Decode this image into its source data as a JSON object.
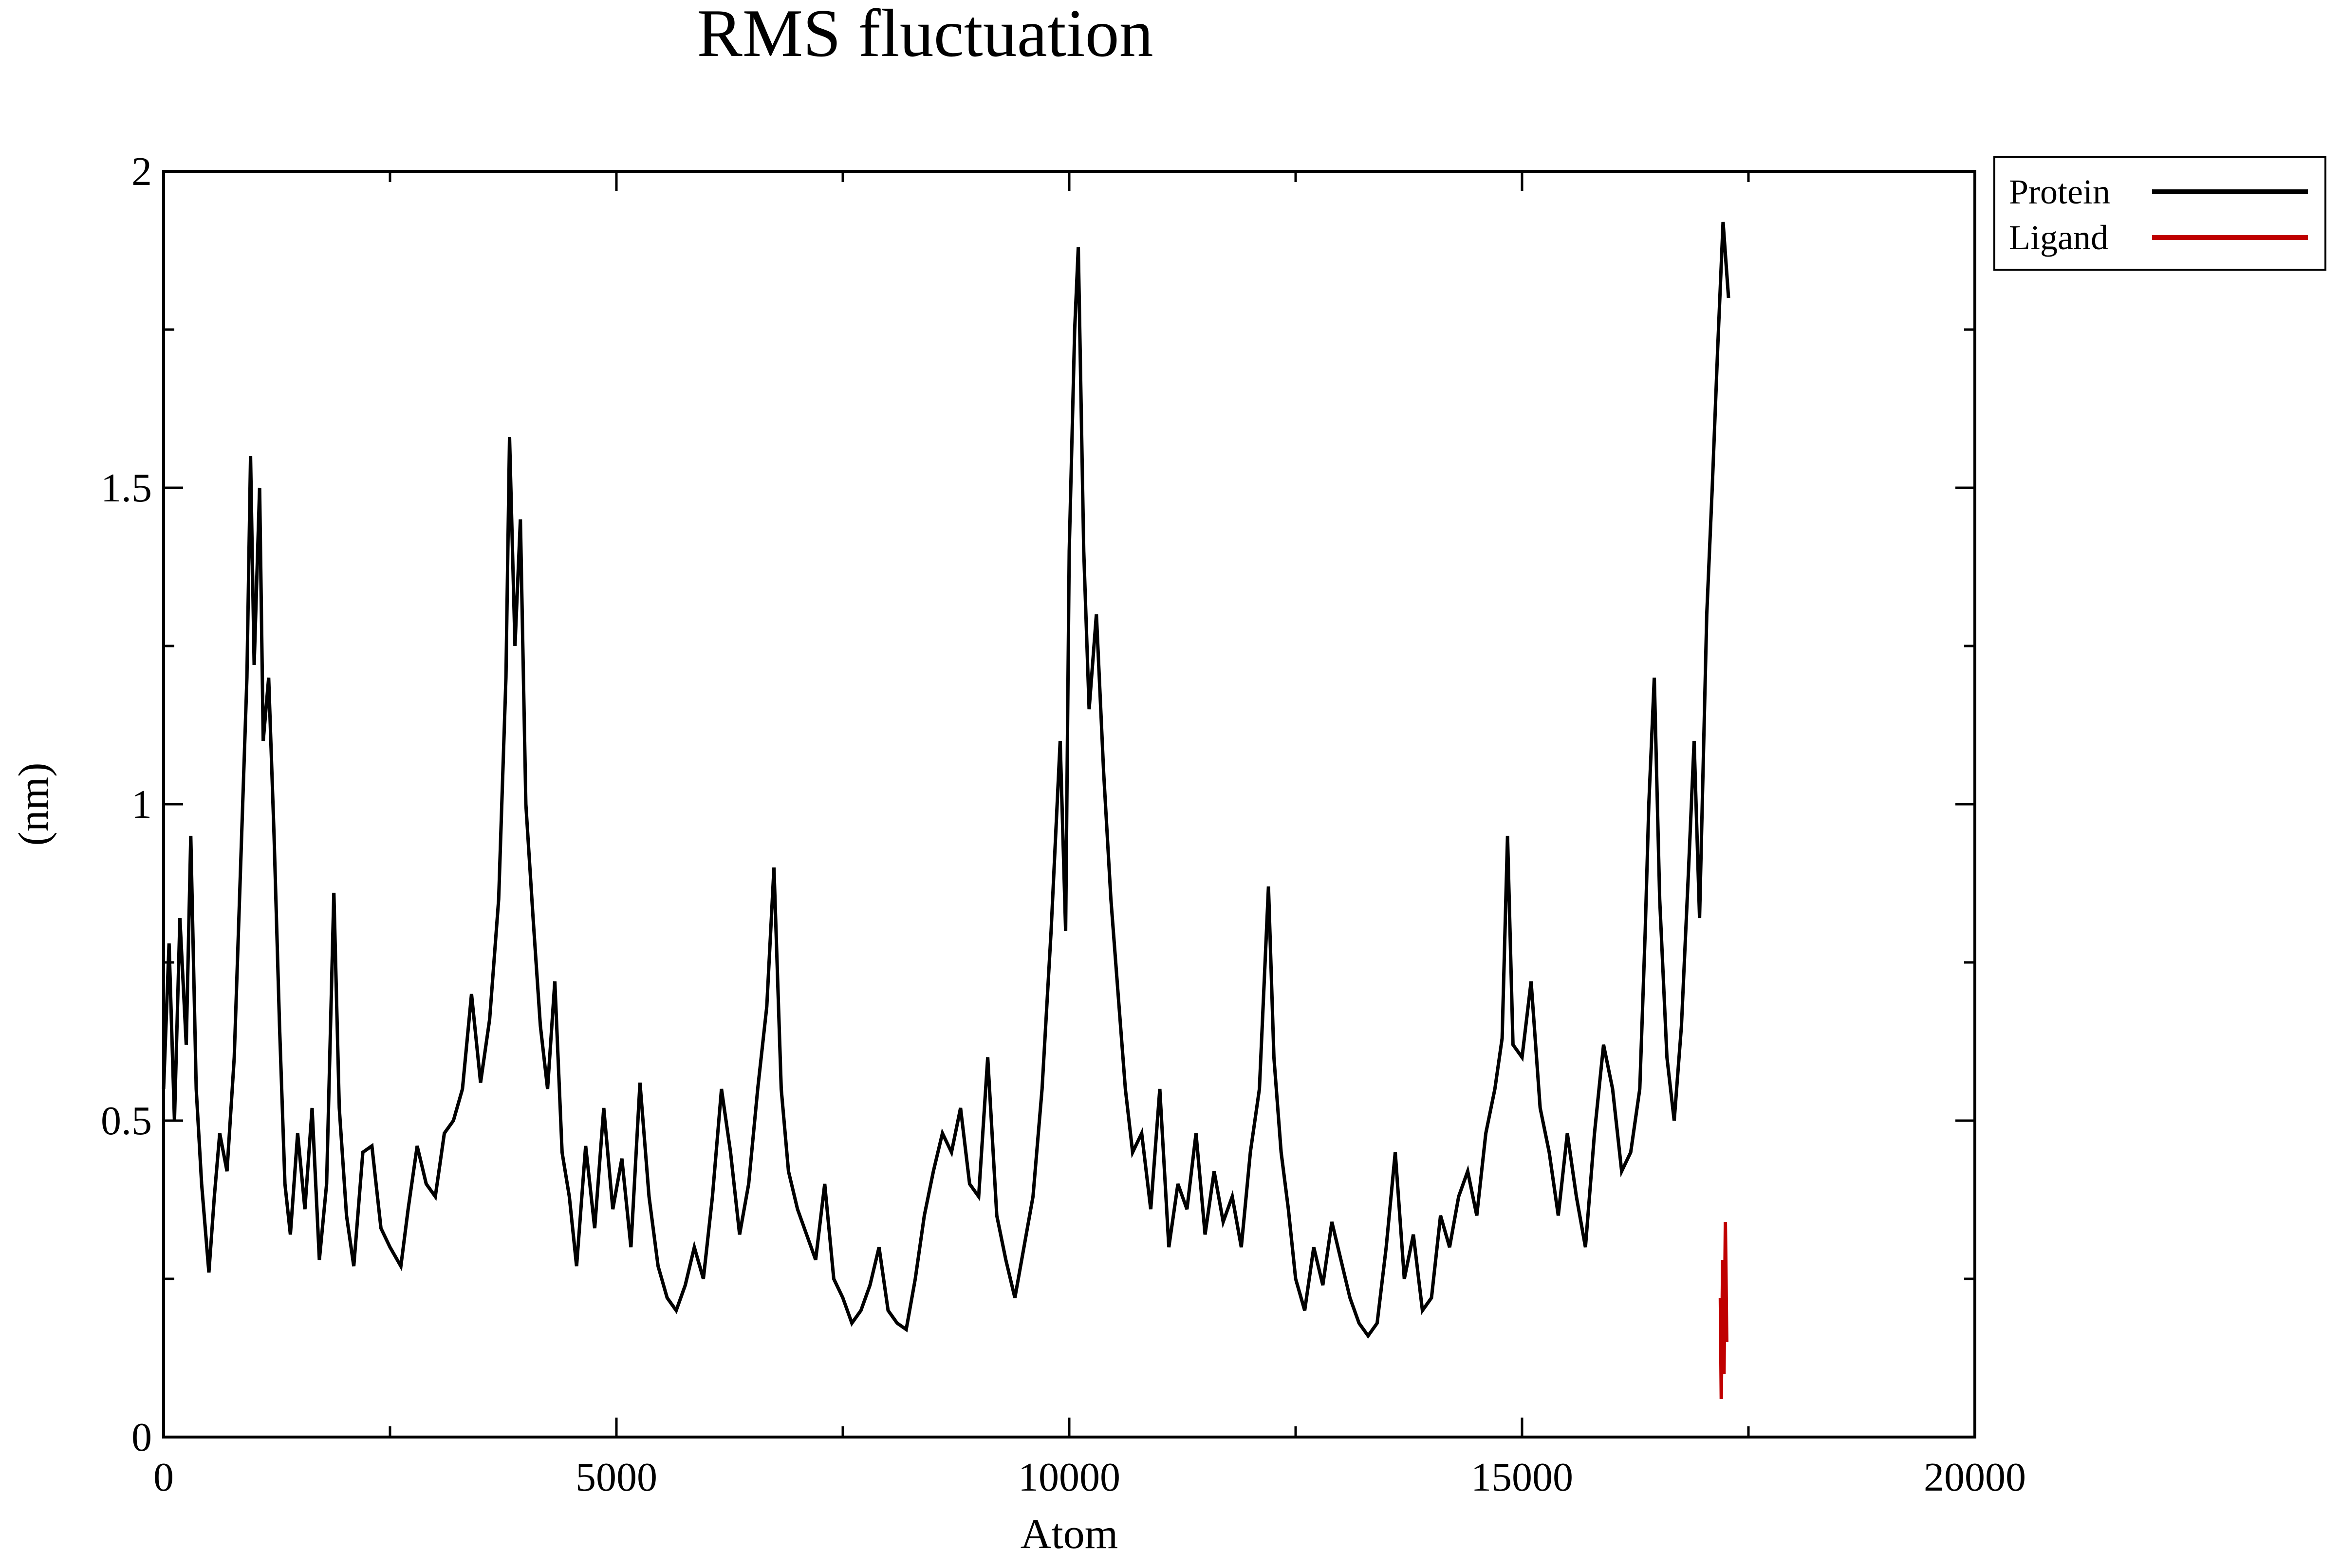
{
  "chart_data": {
    "type": "line",
    "title": "RMS fluctuation",
    "xlabel": "Atom",
    "ylabel": "(nm)",
    "xlim": [
      0,
      20000
    ],
    "ylim": [
      0,
      2
    ],
    "x_major_ticks": [
      0,
      5000,
      10000,
      15000,
      20000
    ],
    "x_tick_labels": [
      "0",
      "5000",
      "10000",
      "15000",
      "20000"
    ],
    "x_minor_ticks": [
      2500,
      7500,
      12500,
      17500
    ],
    "y_major_ticks": [
      0,
      0.5,
      1,
      1.5,
      2
    ],
    "y_tick_labels": [
      "0",
      "0.5",
      "1",
      "1.5",
      "2"
    ],
    "y_minor_ticks": [
      0.25,
      0.75,
      1.25,
      1.75
    ],
    "grid": false,
    "legend_position": "top-right, outside plot",
    "series": [
      {
        "name": "Protein",
        "color": "#000000",
        "points": [
          [
            0,
            0.55
          ],
          [
            60,
            0.78
          ],
          [
            120,
            0.5
          ],
          [
            180,
            0.82
          ],
          [
            250,
            0.62
          ],
          [
            300,
            0.95
          ],
          [
            360,
            0.55
          ],
          [
            420,
            0.4
          ],
          [
            500,
            0.26
          ],
          [
            560,
            0.38
          ],
          [
            620,
            0.48
          ],
          [
            700,
            0.42
          ],
          [
            780,
            0.6
          ],
          [
            850,
            0.9
          ],
          [
            920,
            1.2
          ],
          [
            960,
            1.55
          ],
          [
            1000,
            1.22
          ],
          [
            1060,
            1.5
          ],
          [
            1100,
            1.1
          ],
          [
            1160,
            1.2
          ],
          [
            1220,
            0.95
          ],
          [
            1280,
            0.65
          ],
          [
            1340,
            0.4
          ],
          [
            1400,
            0.32
          ],
          [
            1480,
            0.48
          ],
          [
            1560,
            0.36
          ],
          [
            1640,
            0.52
          ],
          [
            1720,
            0.28
          ],
          [
            1800,
            0.4
          ],
          [
            1880,
            0.86
          ],
          [
            1940,
            0.52
          ],
          [
            2020,
            0.35
          ],
          [
            2100,
            0.27
          ],
          [
            2200,
            0.45
          ],
          [
            2300,
            0.46
          ],
          [
            2400,
            0.33
          ],
          [
            2500,
            0.3
          ],
          [
            2620,
            0.27
          ],
          [
            2700,
            0.36
          ],
          [
            2800,
            0.46
          ],
          [
            2900,
            0.4
          ],
          [
            3000,
            0.38
          ],
          [
            3100,
            0.48
          ],
          [
            3200,
            0.5
          ],
          [
            3300,
            0.55
          ],
          [
            3400,
            0.7
          ],
          [
            3500,
            0.56
          ],
          [
            3600,
            0.66
          ],
          [
            3700,
            0.85
          ],
          [
            3780,
            1.2
          ],
          [
            3820,
            1.58
          ],
          [
            3880,
            1.25
          ],
          [
            3940,
            1.45
          ],
          [
            4000,
            1.0
          ],
          [
            4080,
            0.82
          ],
          [
            4160,
            0.65
          ],
          [
            4240,
            0.55
          ],
          [
            4320,
            0.72
          ],
          [
            4400,
            0.45
          ],
          [
            4480,
            0.38
          ],
          [
            4560,
            0.27
          ],
          [
            4660,
            0.46
          ],
          [
            4760,
            0.33
          ],
          [
            4860,
            0.52
          ],
          [
            4960,
            0.36
          ],
          [
            5060,
            0.44
          ],
          [
            5160,
            0.3
          ],
          [
            5260,
            0.56
          ],
          [
            5360,
            0.38
          ],
          [
            5460,
            0.27
          ],
          [
            5560,
            0.22
          ],
          [
            5660,
            0.2
          ],
          [
            5760,
            0.24
          ],
          [
            5860,
            0.3
          ],
          [
            5960,
            0.25
          ],
          [
            6060,
            0.38
          ],
          [
            6160,
            0.55
          ],
          [
            6260,
            0.45
          ],
          [
            6360,
            0.32
          ],
          [
            6460,
            0.4
          ],
          [
            6560,
            0.55
          ],
          [
            6660,
            0.68
          ],
          [
            6740,
            0.9
          ],
          [
            6820,
            0.55
          ],
          [
            6900,
            0.42
          ],
          [
            7000,
            0.36
          ],
          [
            7100,
            0.32
          ],
          [
            7200,
            0.28
          ],
          [
            7300,
            0.4
          ],
          [
            7400,
            0.25
          ],
          [
            7500,
            0.22
          ],
          [
            7600,
            0.18
          ],
          [
            7700,
            0.2
          ],
          [
            7800,
            0.24
          ],
          [
            7900,
            0.3
          ],
          [
            8000,
            0.2
          ],
          [
            8100,
            0.18
          ],
          [
            8200,
            0.17
          ],
          [
            8300,
            0.25
          ],
          [
            8400,
            0.35
          ],
          [
            8500,
            0.42
          ],
          [
            8600,
            0.48
          ],
          [
            8700,
            0.45
          ],
          [
            8800,
            0.52
          ],
          [
            8900,
            0.4
          ],
          [
            9000,
            0.38
          ],
          [
            9100,
            0.6
          ],
          [
            9200,
            0.35
          ],
          [
            9300,
            0.28
          ],
          [
            9400,
            0.22
          ],
          [
            9500,
            0.3
          ],
          [
            9600,
            0.38
          ],
          [
            9700,
            0.55
          ],
          [
            9800,
            0.8
          ],
          [
            9900,
            1.1
          ],
          [
            9960,
            0.8
          ],
          [
            10000,
            1.4
          ],
          [
            10060,
            1.75
          ],
          [
            10100,
            1.88
          ],
          [
            10160,
            1.4
          ],
          [
            10220,
            1.15
          ],
          [
            10300,
            1.3
          ],
          [
            10380,
            1.05
          ],
          [
            10460,
            0.85
          ],
          [
            10540,
            0.7
          ],
          [
            10620,
            0.55
          ],
          [
            10700,
            0.45
          ],
          [
            10800,
            0.48
          ],
          [
            10900,
            0.36
          ],
          [
            11000,
            0.55
          ],
          [
            11100,
            0.3
          ],
          [
            11200,
            0.4
          ],
          [
            11300,
            0.36
          ],
          [
            11400,
            0.48
          ],
          [
            11500,
            0.32
          ],
          [
            11600,
            0.42
          ],
          [
            11700,
            0.34
          ],
          [
            11800,
            0.38
          ],
          [
            11900,
            0.3
          ],
          [
            12000,
            0.45
          ],
          [
            12100,
            0.55
          ],
          [
            12200,
            0.87
          ],
          [
            12260,
            0.6
          ],
          [
            12340,
            0.45
          ],
          [
            12420,
            0.36
          ],
          [
            12500,
            0.25
          ],
          [
            12600,
            0.2
          ],
          [
            12700,
            0.3
          ],
          [
            12800,
            0.24
          ],
          [
            12900,
            0.34
          ],
          [
            13000,
            0.28
          ],
          [
            13100,
            0.22
          ],
          [
            13200,
            0.18
          ],
          [
            13300,
            0.16
          ],
          [
            13400,
            0.18
          ],
          [
            13500,
            0.3
          ],
          [
            13600,
            0.45
          ],
          [
            13700,
            0.25
          ],
          [
            13800,
            0.32
          ],
          [
            13900,
            0.2
          ],
          [
            14000,
            0.22
          ],
          [
            14100,
            0.35
          ],
          [
            14200,
            0.3
          ],
          [
            14300,
            0.38
          ],
          [
            14400,
            0.42
          ],
          [
            14500,
            0.35
          ],
          [
            14600,
            0.48
          ],
          [
            14700,
            0.55
          ],
          [
            14780,
            0.63
          ],
          [
            14840,
            0.95
          ],
          [
            14900,
            0.62
          ],
          [
            15000,
            0.6
          ],
          [
            15100,
            0.72
          ],
          [
            15200,
            0.52
          ],
          [
            15300,
            0.45
          ],
          [
            15400,
            0.35
          ],
          [
            15500,
            0.48
          ],
          [
            15600,
            0.38
          ],
          [
            15700,
            0.3
          ],
          [
            15800,
            0.48
          ],
          [
            15900,
            0.62
          ],
          [
            16000,
            0.55
          ],
          [
            16100,
            0.42
          ],
          [
            16200,
            0.45
          ],
          [
            16300,
            0.55
          ],
          [
            16360,
            0.8
          ],
          [
            16400,
            1.0
          ],
          [
            16460,
            1.2
          ],
          [
            16520,
            0.85
          ],
          [
            16600,
            0.6
          ],
          [
            16680,
            0.5
          ],
          [
            16760,
            0.65
          ],
          [
            16840,
            0.9
          ],
          [
            16900,
            1.1
          ],
          [
            16960,
            0.82
          ],
          [
            17040,
            1.3
          ],
          [
            17100,
            1.5
          ],
          [
            17160,
            1.72
          ],
          [
            17220,
            1.92
          ],
          [
            17280,
            1.8
          ]
        ]
      },
      {
        "name": "Ligand",
        "color": "#c00000",
        "points": [
          [
            17190,
            0.22
          ],
          [
            17200,
            0.06
          ],
          [
            17215,
            0.28
          ],
          [
            17230,
            0.1
          ],
          [
            17245,
            0.34
          ],
          [
            17260,
            0.15
          ]
        ]
      }
    ]
  }
}
